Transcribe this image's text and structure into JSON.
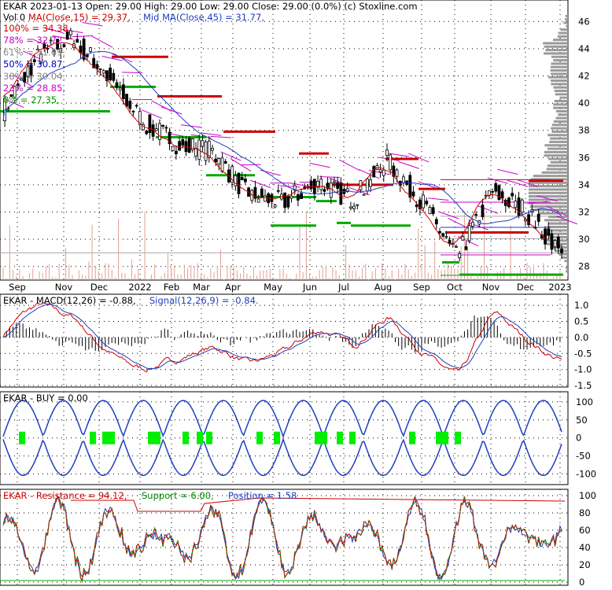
{
  "header": {
    "line1": "EKAR  2023-01-13 Open: 29.00  High: 29.00  Low: 29.00  Close: 29.00 (0.0%)  (c) Stoxline.com",
    "ma15": "MA(Close,15) = 29.37,",
    "ma45": "Mid MA(Close,45) = 31.77,",
    "vol": "Vol 0"
  },
  "fib_labels": [
    {
      "text": "100% = 34.38,",
      "color": "#cc0000"
    },
    {
      "text": "78% = 32.72,",
      "color": "#cc00cc"
    },
    {
      "text": "61% = 31.69,",
      "color": "#888888"
    },
    {
      "text": "50% = 30.87,",
      "color": "#0000cc"
    },
    {
      "text": "38% = 30.04,",
      "color": "#888888"
    },
    {
      "text": "23% = 28.85,",
      "color": "#cc00cc"
    },
    {
      "text": "0% = 27.35,",
      "color": "#009900"
    }
  ],
  "colors": {
    "red": "#cc0000",
    "blue": "#1f3fbf",
    "green": "#00aa00",
    "magenta": "#cc00cc",
    "gray": "#a8a8a8",
    "black": "#000000",
    "volume": "#e0a090",
    "buy": "#00ee00"
  },
  "chart_data": [
    {
      "type": "candlestick",
      "ylim": [
        27,
        47
      ],
      "y_ticks": [
        "28",
        "30",
        "32",
        "34",
        "36",
        "38",
        "40",
        "42",
        "44",
        "46"
      ],
      "x_ticks": [
        "Sep",
        "Nov",
        "Dec",
        "2022",
        "Feb",
        "Mar",
        "Apr",
        "May",
        "Jun",
        "Jul",
        "Aug",
        "Sep",
        "Oct",
        "Nov",
        "Dec",
        "2023"
      ],
      "close_monthly": [
        39.5,
        43.5,
        44.8,
        42.0,
        38.6,
        37.0,
        36.4,
        33.3,
        32.7,
        34.2,
        32.9,
        35.8,
        32.7,
        28.6,
        33.6,
        32.0,
        29.0
      ],
      "ma15": 29.37,
      "ma45": 31.77
    },
    {
      "type": "line",
      "label": "EKAR - MACD(12,26) = -0.88,",
      "signal_label": "Signal(12,26,9) = -0.84.",
      "ylim": [
        -1.5,
        1.2
      ],
      "y_ticks": [
        "1.0",
        "0.5",
        "0.0",
        "-0.5",
        "-1.0",
        "-1.5"
      ],
      "macd_last": -0.88,
      "signal_last": -0.84
    },
    {
      "type": "line",
      "label": "EKAR - BUY = 0.00",
      "ylim": [
        -125,
        115
      ],
      "y_ticks": [
        "100",
        "50",
        "0",
        "-50",
        "-100"
      ]
    },
    {
      "type": "line",
      "label": "EKAR - Resistance = 94.12,",
      "support_label": "Support = 6.00,",
      "position_label": "Position = 1.58",
      "ylim": [
        0,
        100
      ],
      "y_ticks": [
        "100",
        "80",
        "60",
        "40",
        "20",
        "0"
      ],
      "resistance": 94.12,
      "support": 6.0,
      "position": 1.58
    }
  ]
}
